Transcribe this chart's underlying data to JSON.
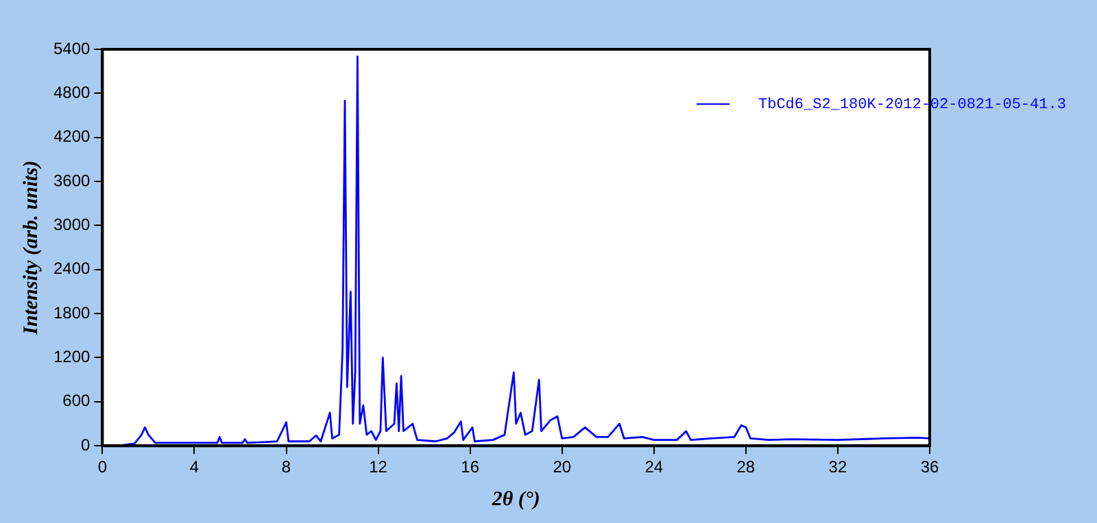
{
  "chart_data": {
    "type": "line",
    "xlabel": "2θ (°)",
    "ylabel": "Intensity (arb. units)",
    "xlim": [
      0,
      36
    ],
    "xticks": [
      0,
      4,
      8,
      12,
      16,
      20,
      24,
      28,
      32,
      36
    ],
    "ylim": [
      0,
      5400
    ],
    "yticks": [
      0,
      600,
      1200,
      1800,
      2400,
      3000,
      3600,
      4200,
      4800,
      5400
    ],
    "grid": false,
    "legend": "top right",
    "line_style": "solid",
    "series": [
      {
        "name": "TbCd6_S2_180K-2012-02-0821-05-41.3",
        "color": "#0000ff",
        "x": [
          0.9,
          1.4,
          1.7,
          1.85,
          2.0,
          2.3,
          3,
          5.0,
          5.1,
          5.2,
          6.1,
          6.2,
          6.3,
          7.0,
          7.6,
          8.0,
          8.1,
          9.0,
          9.3,
          9.5,
          9.9,
          10.0,
          10.3,
          10.45,
          10.55,
          10.65,
          10.8,
          10.9,
          11.0,
          11.1,
          11.2,
          11.35,
          11.5,
          11.7,
          11.9,
          12.1,
          12.2,
          12.35,
          12.7,
          12.8,
          12.9,
          13.0,
          13.1,
          13.3,
          13.5,
          13.7,
          14.5,
          15.0,
          15.3,
          15.6,
          15.7,
          16.1,
          16.2,
          17.0,
          17.5,
          17.9,
          18.0,
          18.2,
          18.4,
          18.7,
          19.0,
          19.1,
          19.5,
          19.8,
          20.0,
          20.5,
          21.0,
          21.5,
          22.0,
          22.5,
          22.7,
          23.5,
          24.0,
          25.0,
          25.4,
          25.6,
          26.5,
          27.5,
          27.8,
          28.0,
          28.2,
          29,
          30,
          32,
          34,
          35.5,
          36
        ],
        "values": [
          10,
          30,
          150,
          250,
          150,
          40,
          40,
          40,
          120,
          40,
          40,
          90,
          40,
          50,
          60,
          320,
          60,
          60,
          140,
          60,
          450,
          100,
          150,
          1300,
          4700,
          800,
          2100,
          300,
          1000,
          5300,
          300,
          550,
          150,
          200,
          80,
          200,
          1200,
          200,
          300,
          850,
          200,
          950,
          200,
          250,
          300,
          80,
          60,
          100,
          180,
          330,
          80,
          250,
          60,
          80,
          150,
          1000,
          300,
          450,
          150,
          200,
          900,
          200,
          350,
          400,
          100,
          120,
          250,
          120,
          120,
          300,
          100,
          120,
          80,
          80,
          200,
          80,
          100,
          120,
          280,
          250,
          100,
          80,
          90,
          80,
          100,
          110,
          100
        ]
      }
    ]
  }
}
